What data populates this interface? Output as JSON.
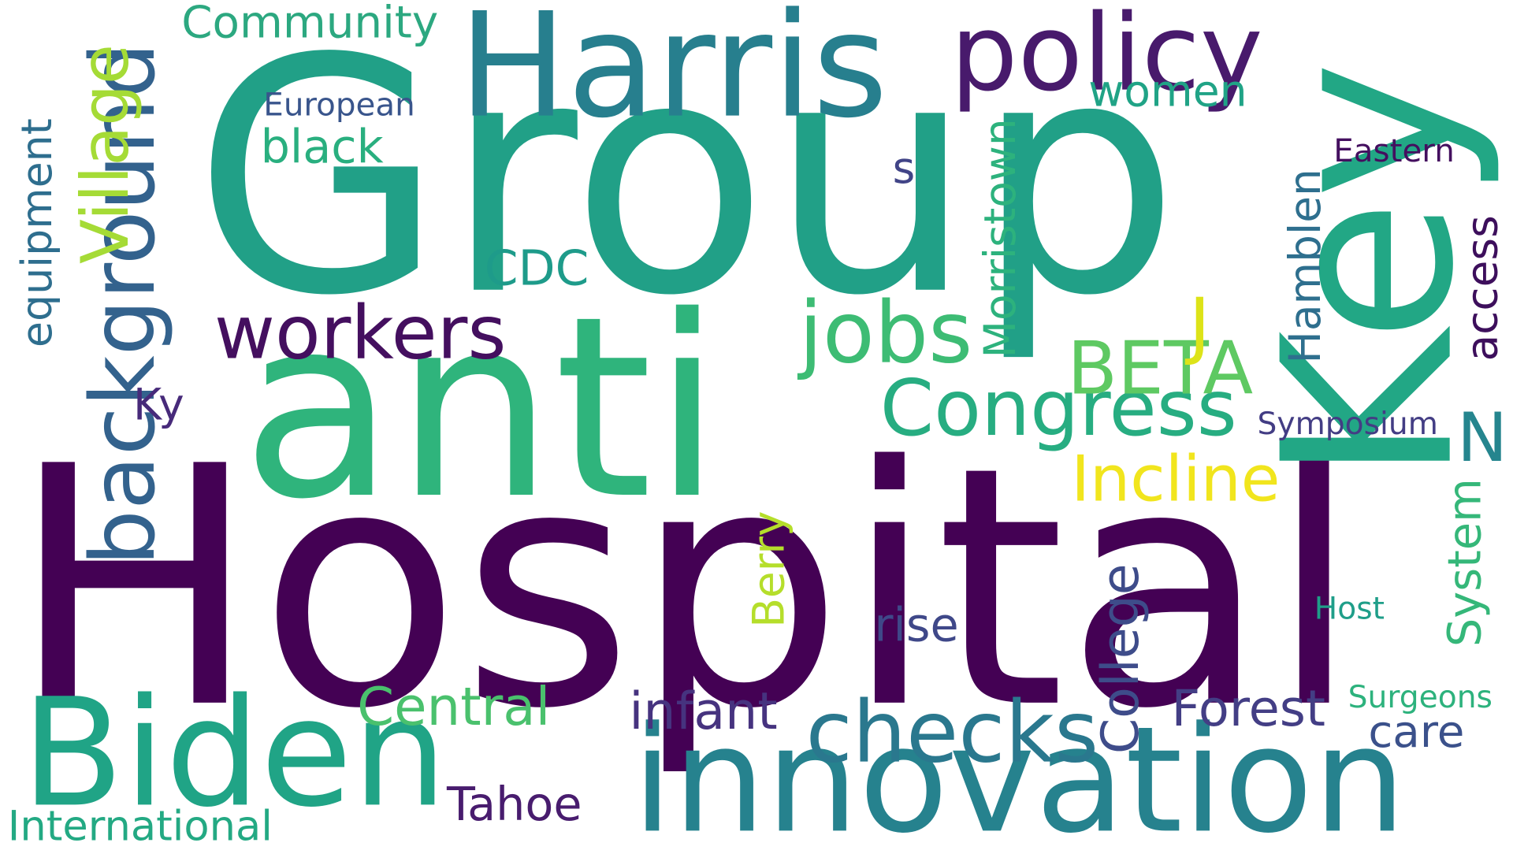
{
  "words": {
    "hospital": {
      "text": "Hospital",
      "color": "#440154"
    },
    "group": {
      "text": "Group",
      "color": "#21a087"
    },
    "anti": {
      "text": "anti",
      "color": "#2fb47c"
    },
    "key": {
      "text": "Key",
      "color": "#22a785"
    },
    "harris": {
      "text": "Harris",
      "color": "#277f8e"
    },
    "innovation": {
      "text": "innovation",
      "color": "#26828e"
    },
    "biden": {
      "text": "Biden",
      "color": "#20a486"
    },
    "policy": {
      "text": "policy",
      "color": "#481a6c"
    },
    "background": {
      "text": "background",
      "color": "#33628d"
    },
    "checks": {
      "text": "checks",
      "color": "#2a788e"
    },
    "congress": {
      "text": "Congress",
      "color": "#27ad81"
    },
    "workers": {
      "text": "workers",
      "color": "#440f5f"
    },
    "jobs": {
      "text": "jobs",
      "color": "#3dbc74"
    },
    "beta": {
      "text": "BETA",
      "color": "#5ec962"
    },
    "incline": {
      "text": "Incline",
      "color": "#f1e51d"
    },
    "village": {
      "text": "Village",
      "color": "#a5db36"
    },
    "community": {
      "text": "Community",
      "color": "#2ca880"
    },
    "international": {
      "text": "International",
      "color": "#23a983"
    },
    "morristown": {
      "text": "Morristown",
      "color": "#2db27d"
    },
    "college": {
      "text": "College",
      "color": "#3e4c8a"
    },
    "central": {
      "text": "Central",
      "color": "#4ac16d"
    },
    "infant": {
      "text": "infant",
      "color": "#46337f"
    },
    "forest": {
      "text": "Forest",
      "color": "#433e85"
    },
    "hamblen": {
      "text": "Hamblen",
      "color": "#2e6f8e"
    },
    "j": {
      "text": "J",
      "color": "#dde318"
    },
    "n": {
      "text": "N",
      "color": "#25858e"
    },
    "access": {
      "text": "access",
      "color": "#3d0f5c"
    },
    "system": {
      "text": "System",
      "color": "#35b779"
    },
    "equipment": {
      "text": "equipment",
      "color": "#2e6e8e"
    },
    "tahoe": {
      "text": "Tahoe",
      "color": "#481c6e"
    },
    "black": {
      "text": "black",
      "color": "#29af7f"
    },
    "women": {
      "text": "women",
      "color": "#20a386"
    },
    "cdc": {
      "text": "CDC",
      "color": "#1e9b8a"
    },
    "rise": {
      "text": "rise",
      "color": "#3f4889"
    },
    "care": {
      "text": "care",
      "color": "#3b518b"
    },
    "berry": {
      "text": "Berry",
      "color": "#b5de2b"
    },
    "european": {
      "text": "European",
      "color": "#39558c"
    },
    "eastern": {
      "text": "Eastern",
      "color": "#440f5f"
    },
    "symposium": {
      "text": "Symposium",
      "color": "#433d84"
    },
    "surgeons": {
      "text": "Surgeons",
      "color": "#2db27d"
    },
    "host": {
      "text": "Host",
      "color": "#1f9e89"
    },
    "ky": {
      "text": "Ky",
      "color": "#472a7a"
    },
    "s": {
      "text": "s",
      "color": "#414487"
    }
  }
}
